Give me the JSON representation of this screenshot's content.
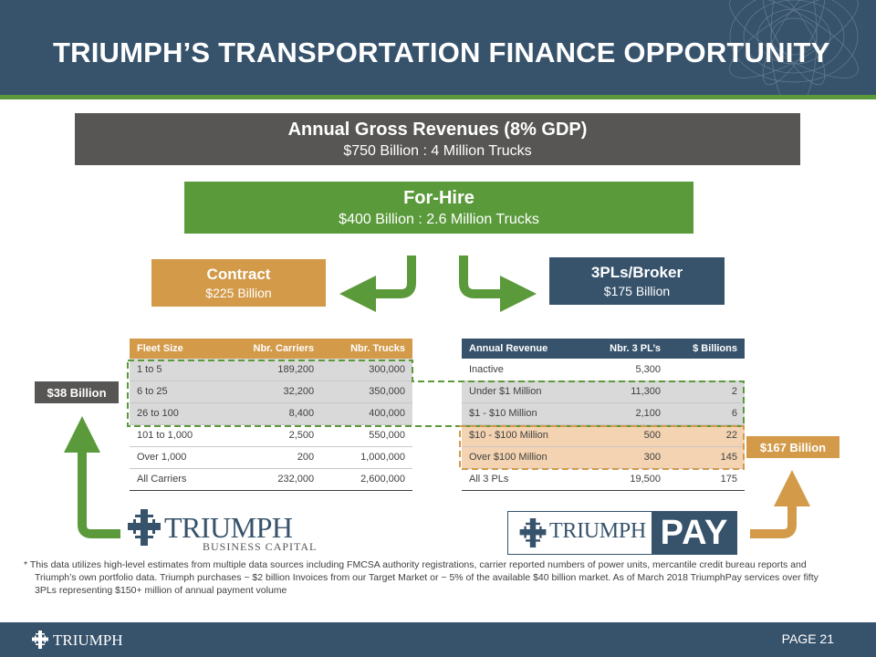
{
  "header": {
    "title": "TRIUMPH’S TRANSPORTATION FINANCE OPPORTUNITY"
  },
  "gross": {
    "heading": "Annual Gross Revenues  (8% GDP)",
    "sub": "$750 Billion : 4 Million Trucks"
  },
  "for_hire": {
    "heading": "For-Hire",
    "sub": "$400 Billion : 2.6 Million Trucks"
  },
  "contract": {
    "heading": "Contract",
    "sub": "$225 Billion"
  },
  "broker": {
    "heading": "3PLs/Broker",
    "sub": "$175 Billion"
  },
  "fleet_table": {
    "headers": [
      "Fleet Size",
      "Nbr. Carriers",
      "Nbr. Trucks"
    ],
    "rows": [
      [
        "1 to 5",
        "189,200",
        "300,000"
      ],
      [
        "6 to 25",
        "32,200",
        "350,000"
      ],
      [
        "26 to 100",
        "8,400",
        "400,000"
      ],
      [
        "101 to 1,000",
        "2,500",
        "550,000"
      ],
      [
        "Over 1,000",
        "200",
        "1,000,000"
      ],
      [
        "All Carriers",
        "232,000",
        "2,600,000"
      ]
    ]
  },
  "revenue_table": {
    "headers": [
      "Annual Revenue",
      "Nbr. 3 PL’s",
      "$ Billions"
    ],
    "rows": [
      [
        "Inactive",
        "5,300",
        ""
      ],
      [
        "Under $1 Million",
        "11,300",
        "2"
      ],
      [
        "$1 - $10 Million",
        "2,100",
        "6"
      ],
      [
        "$10 - $100 Million",
        "500",
        "22"
      ],
      [
        "Over $100 Million",
        "300",
        "145"
      ],
      [
        "All 3 PLs",
        "19,500",
        "175"
      ]
    ]
  },
  "badges": {
    "left": "$38 Billion",
    "right": "$167 Billion"
  },
  "logos": {
    "business_capital_name": "TRIUMPH",
    "business_capital_sub": "BUSINESS CAPITAL",
    "pay_name": "TRIUMPH",
    "pay_word": "PAY",
    "footer_name": "TRIUMPH"
  },
  "footnote": "*  This data utilizes high-level estimates from multiple data sources including  FMCSA authority registrations,  carrier reported numbers of power units, mercantile credit bureau reports  and Triumph’s own portfolio data. Triumph purchases ~ $2 billion Invoices from our Target Market or ~ 5% of the available $40 billion market. As of March 2018 TriumphPay services over fifty 3PLs representing $150+ million of annual payment volume",
  "footer": {
    "page": "PAGE 21"
  },
  "colors": {
    "navy": "#37536c",
    "green": "#5b9a3b",
    "tan": "#d39a4a",
    "grey": "#575654"
  }
}
